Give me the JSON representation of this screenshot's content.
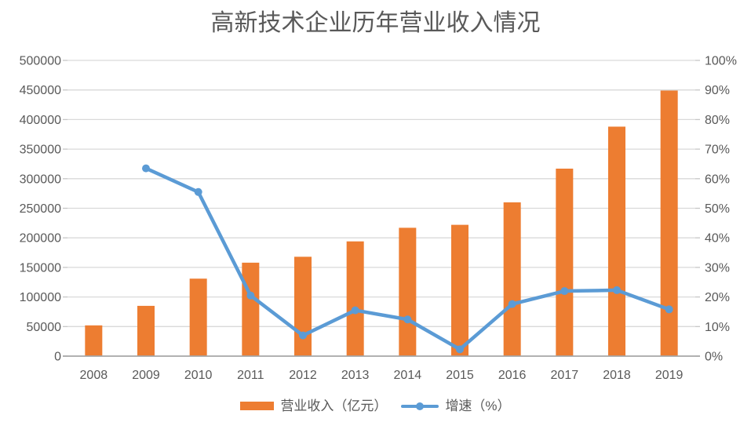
{
  "title": "高新技术企业历年营业收入情况",
  "colors": {
    "bar": "#ED7D31",
    "line": "#5B9BD5",
    "gridline": "#D9D9D9",
    "tick": "#C6C6C6",
    "axis_line": "#A6A6A6",
    "text": "#595959",
    "background": "#FFFFFF"
  },
  "legend": {
    "items": [
      {
        "label": "营业收入（亿元）",
        "swatch": "bar"
      },
      {
        "label": "增速（%）",
        "swatch": "line"
      }
    ]
  },
  "chart_data": {
    "type": "combo-bar-line",
    "title": "高新技术企业历年营业收入情况",
    "categories": [
      "2008",
      "2009",
      "2010",
      "2011",
      "2012",
      "2013",
      "2014",
      "2015",
      "2016",
      "2017",
      "2018",
      "2019"
    ],
    "series": [
      {
        "name": "营业收入（亿元）",
        "type": "bar",
        "yaxis": "left",
        "color": "#ED7D31",
        "values": [
          52000,
          85000,
          131000,
          158000,
          168000,
          194000,
          217000,
          222000,
          260000,
          317000,
          388000,
          449000
        ]
      },
      {
        "name": "增速（%）",
        "type": "line",
        "yaxis": "right",
        "color": "#5B9BD5",
        "values": [
          null,
          63.5,
          55.5,
          20.5,
          7.0,
          15.5,
          12.4,
          2.3,
          17.6,
          22.0,
          22.3,
          15.8
        ]
      }
    ],
    "left_axis": {
      "min": 0,
      "max": 500000,
      "step": 50000,
      "tick_labels": [
        "0",
        "50000",
        "100000",
        "150000",
        "200000",
        "250000",
        "300000",
        "350000",
        "400000",
        "450000",
        "500000"
      ]
    },
    "right_axis": {
      "min": 0,
      "max": 100,
      "step": 10,
      "tick_labels": [
        "0%",
        "10%",
        "20%",
        "30%",
        "40%",
        "50%",
        "60%",
        "70%",
        "80%",
        "90%",
        "100%"
      ]
    },
    "xlabel": "",
    "ylabel": "",
    "grid": true,
    "legend_position": "bottom"
  }
}
